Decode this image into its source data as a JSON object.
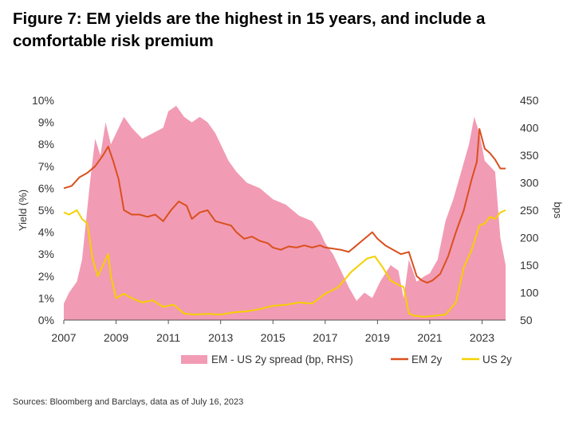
{
  "title": "Figure 7: EM yields are the highest in 15 years, and include a comfortable risk premium",
  "source": "Sources: Bloomberg and Barclays, data as of July 16, 2023",
  "colors": {
    "spread": "#f29bb4",
    "em": "#d9501e",
    "us": "#f5d000",
    "axis": "#555555"
  },
  "chart_data": {
    "type": "area",
    "ylabel": "Yield (%)",
    "y2label": "bps",
    "x_ticks": [
      "2007",
      "2009",
      "2011",
      "2013",
      "2015",
      "2017",
      "2019",
      "2021",
      "2023"
    ],
    "x_range": [
      2007.0,
      2023.9
    ],
    "ylim": [
      0,
      10
    ],
    "y_ticks": [
      "10%",
      "9%",
      "8%",
      "7%",
      "6%",
      "5%",
      "4%",
      "3%",
      "2%",
      "1%",
      "0%"
    ],
    "y2lim": [
      50,
      450
    ],
    "y2_ticks": [
      "450",
      "400",
      "350",
      "300",
      "250",
      "200",
      "150",
      "100",
      "50"
    ],
    "grid": false,
    "legend_position": "bottom",
    "series": [
      {
        "name": "EM - US 2y spread (bp, RHS)",
        "axis": "right",
        "kind": "area",
        "x": [
          2007.0,
          2007.2,
          2007.5,
          2007.7,
          2008.0,
          2008.2,
          2008.4,
          2008.6,
          2008.8,
          2009.0,
          2009.3,
          2009.6,
          2010.0,
          2010.4,
          2010.8,
          2011.0,
          2011.3,
          2011.6,
          2011.9,
          2012.2,
          2012.5,
          2012.8,
          2013.0,
          2013.3,
          2013.6,
          2014.0,
          2014.5,
          2015.0,
          2015.5,
          2016.0,
          2016.5,
          2016.8,
          2017.0,
          2017.3,
          2017.6,
          2017.9,
          2018.2,
          2018.5,
          2018.8,
          2019.1,
          2019.5,
          2019.8,
          2020.0,
          2020.2,
          2020.5,
          2020.8,
          2021.0,
          2021.3,
          2021.6,
          2021.9,
          2022.2,
          2022.5,
          2022.7,
          2022.9,
          2023.1,
          2023.3,
          2023.5,
          2023.7,
          2023.9
        ],
        "values": [
          80,
          100,
          120,
          160,
          300,
          380,
          350,
          410,
          370,
          390,
          420,
          400,
          380,
          390,
          400,
          430,
          440,
          420,
          410,
          420,
          410,
          390,
          370,
          340,
          320,
          300,
          290,
          270,
          260,
          240,
          230,
          210,
          190,
          170,
          140,
          110,
          85,
          100,
          90,
          120,
          150,
          140,
          90,
          160,
          120,
          130,
          135,
          160,
          230,
          270,
          320,
          370,
          420,
          390,
          340,
          330,
          320,
          200,
          150
        ]
      },
      {
        "name": "EM 2y",
        "axis": "left",
        "kind": "line",
        "x": [
          2007.0,
          2007.3,
          2007.6,
          2007.9,
          2008.2,
          2008.5,
          2008.7,
          2008.9,
          2009.1,
          2009.3,
          2009.6,
          2009.9,
          2010.2,
          2010.5,
          2010.8,
          2011.1,
          2011.4,
          2011.7,
          2011.9,
          2012.2,
          2012.5,
          2012.8,
          2013.1,
          2013.4,
          2013.6,
          2013.9,
          2014.2,
          2014.5,
          2014.8,
          2015.0,
          2015.3,
          2015.6,
          2015.9,
          2016.2,
          2016.5,
          2016.8,
          2017.0,
          2017.3,
          2017.6,
          2017.9,
          2018.2,
          2018.5,
          2018.8,
          2019.0,
          2019.3,
          2019.6,
          2019.9,
          2020.2,
          2020.5,
          2020.7,
          2020.9,
          2021.1,
          2021.4,
          2021.7,
          2022.0,
          2022.3,
          2022.6,
          2022.8,
          2022.9,
          2023.1,
          2023.3,
          2023.5,
          2023.7,
          2023.9
        ],
        "values": [
          6.0,
          6.1,
          6.5,
          6.7,
          7.0,
          7.5,
          7.9,
          7.2,
          6.4,
          5.0,
          4.8,
          4.8,
          4.7,
          4.8,
          4.5,
          5.0,
          5.4,
          5.2,
          4.6,
          4.9,
          5.0,
          4.5,
          4.4,
          4.3,
          4.0,
          3.7,
          3.8,
          3.6,
          3.5,
          3.3,
          3.2,
          3.35,
          3.3,
          3.4,
          3.3,
          3.4,
          3.3,
          3.25,
          3.2,
          3.1,
          3.4,
          3.7,
          4.0,
          3.7,
          3.4,
          3.2,
          3.0,
          3.1,
          2.0,
          1.8,
          1.7,
          1.8,
          2.1,
          2.9,
          4.0,
          5.0,
          6.4,
          7.2,
          8.7,
          7.8,
          7.6,
          7.3,
          6.9,
          6.9
        ]
      },
      {
        "name": "US 2y",
        "axis": "left",
        "kind": "line",
        "x": [
          2007.0,
          2007.2,
          2007.5,
          2007.7,
          2007.9,
          2008.1,
          2008.3,
          2008.5,
          2008.7,
          2008.8,
          2009.0,
          2009.3,
          2009.6,
          2010.0,
          2010.4,
          2010.8,
          2011.2,
          2011.6,
          2012.0,
          2012.5,
          2013.0,
          2013.5,
          2014.0,
          2014.5,
          2015.0,
          2015.5,
          2016.0,
          2016.5,
          2017.0,
          2017.5,
          2018.0,
          2018.3,
          2018.6,
          2018.9,
          2019.2,
          2019.5,
          2019.8,
          2020.0,
          2020.2,
          2020.4,
          2020.8,
          2021.2,
          2021.6,
          2022.0,
          2022.3,
          2022.6,
          2022.9,
          2023.1,
          2023.3,
          2023.5,
          2023.7,
          2023.9
        ],
        "values": [
          4.9,
          4.8,
          5.0,
          4.6,
          4.4,
          2.8,
          2.0,
          2.5,
          3.0,
          2.0,
          1.0,
          1.2,
          1.0,
          0.8,
          0.9,
          0.6,
          0.7,
          0.3,
          0.25,
          0.28,
          0.25,
          0.35,
          0.4,
          0.5,
          0.65,
          0.7,
          0.8,
          0.75,
          1.2,
          1.5,
          2.2,
          2.5,
          2.8,
          2.9,
          2.4,
          1.8,
          1.6,
          1.5,
          0.3,
          0.2,
          0.15,
          0.2,
          0.25,
          0.8,
          2.4,
          3.2,
          4.3,
          4.4,
          4.7,
          4.6,
          4.9,
          5.0
        ]
      }
    ]
  }
}
